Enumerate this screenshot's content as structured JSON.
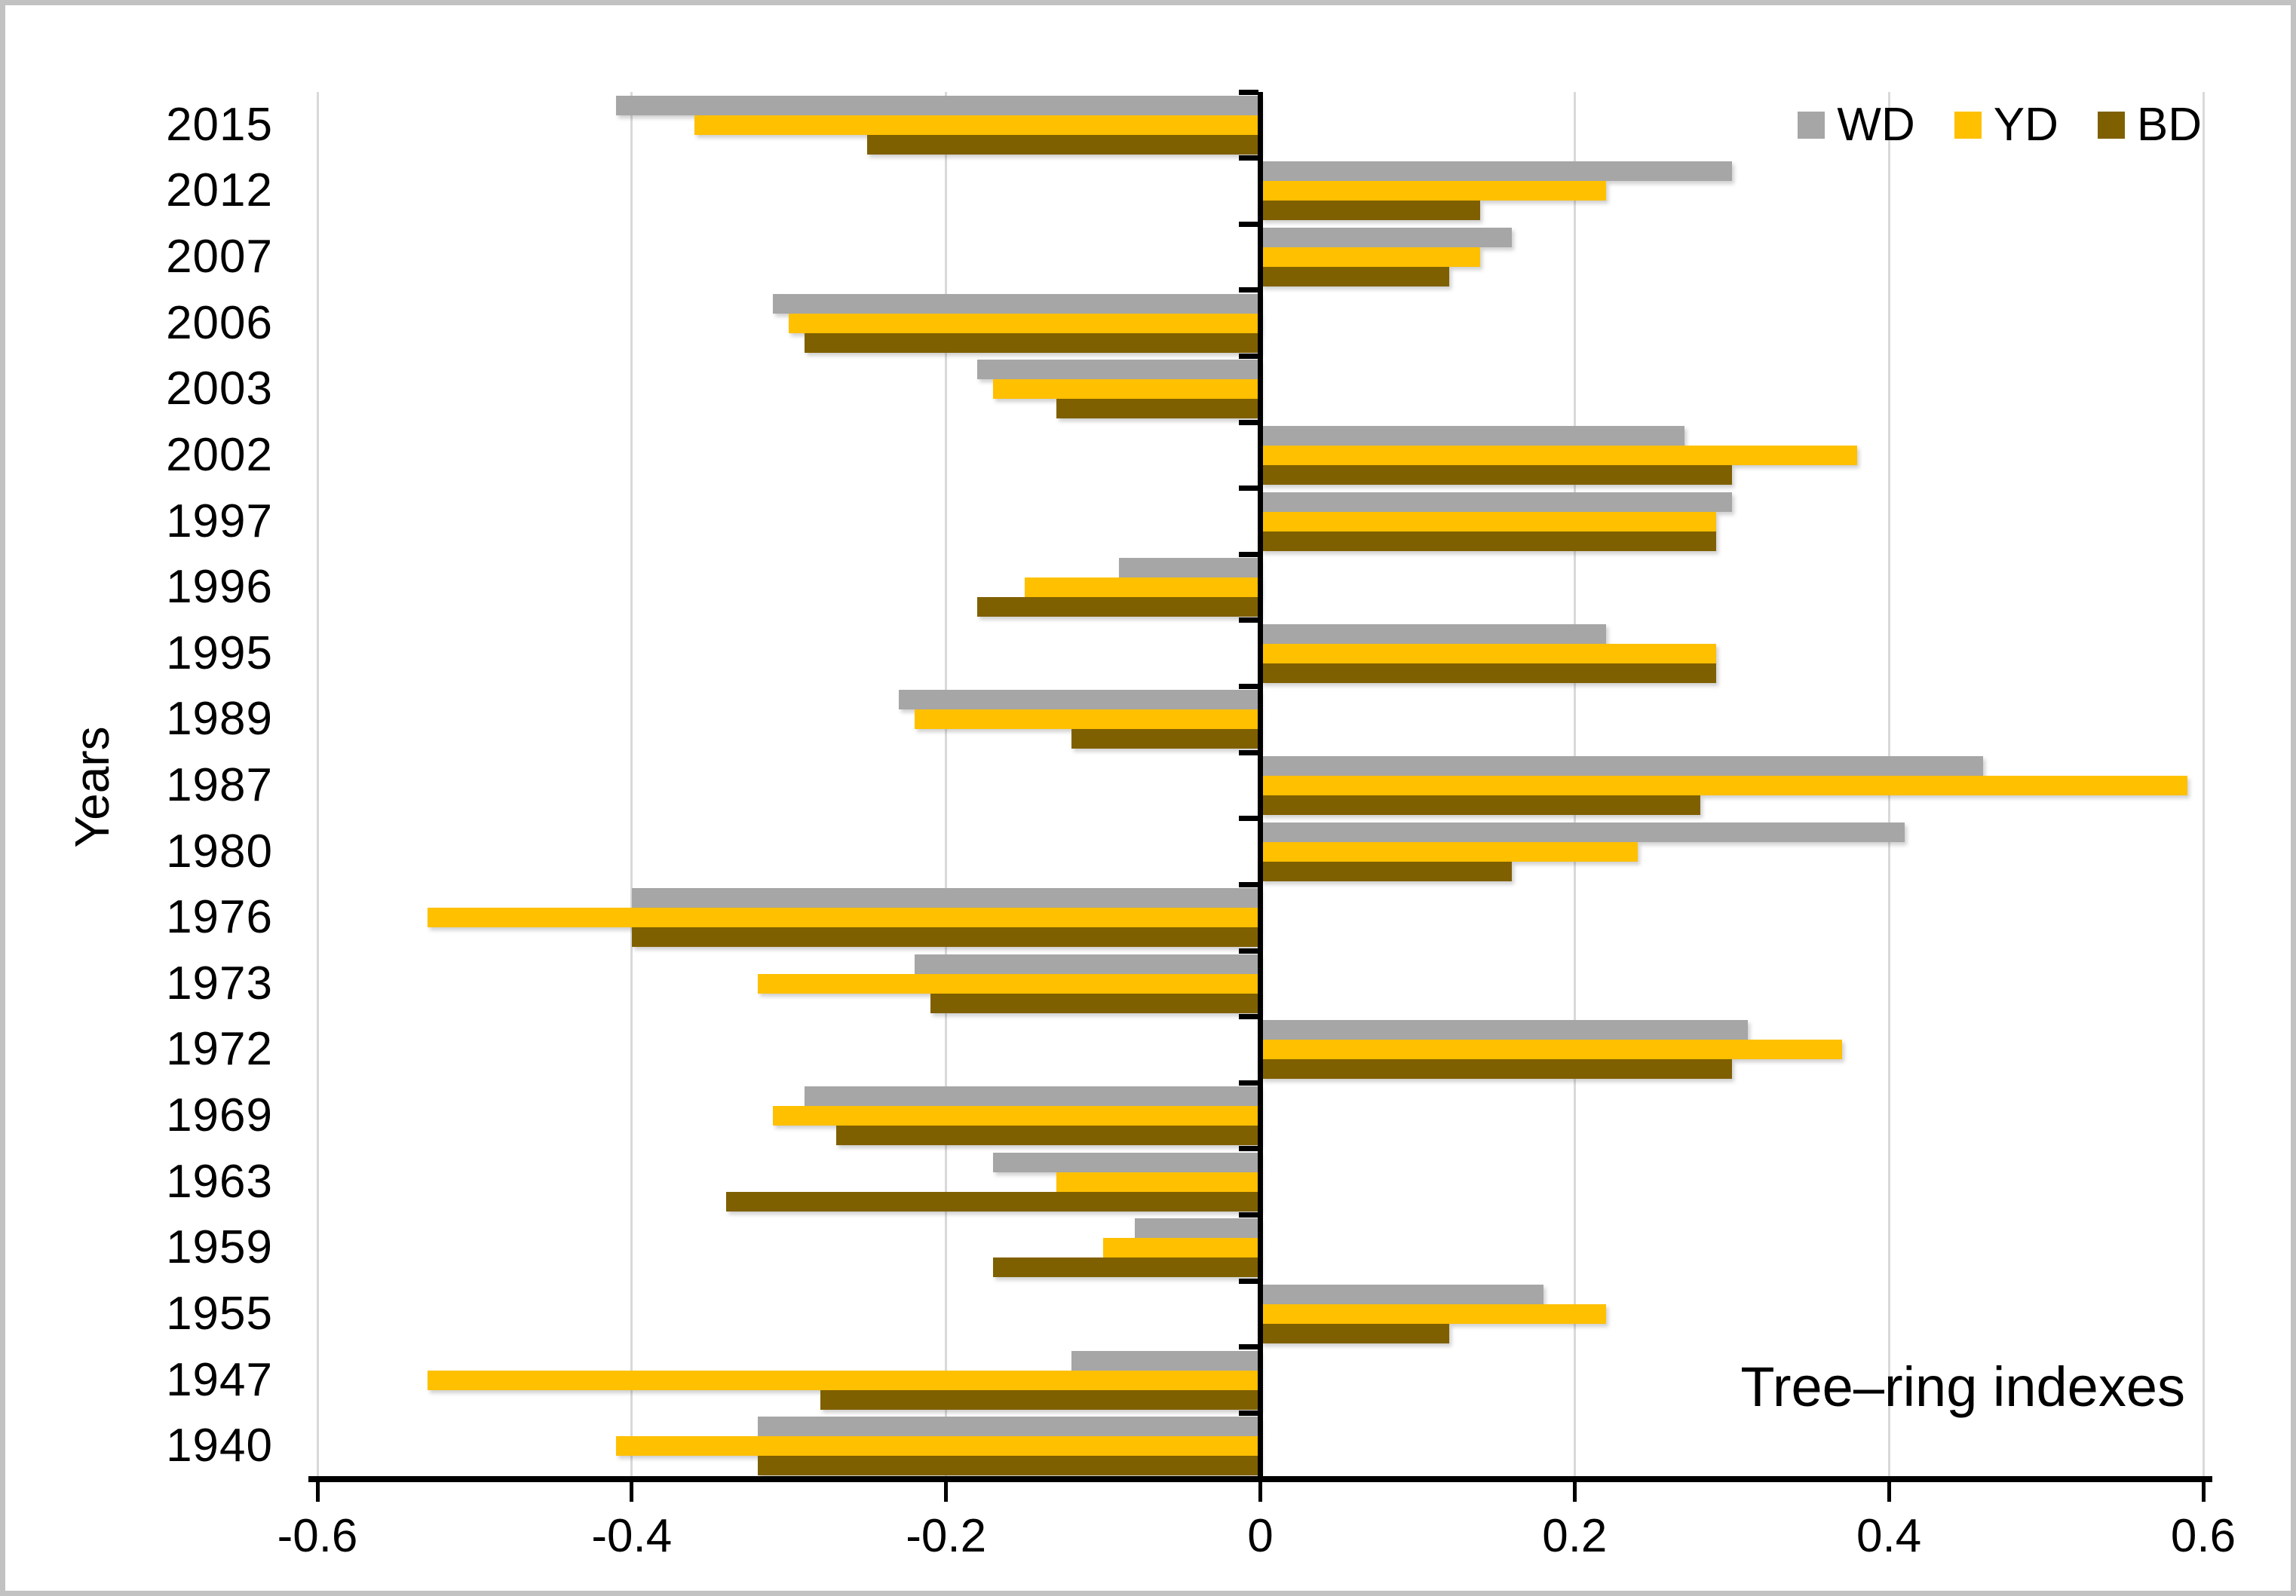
{
  "chart_data": {
    "type": "bar",
    "orientation": "horizontal",
    "title": "Tree–ring indexes",
    "xlabel": "",
    "ylabel": "Years",
    "categories": [
      "2015",
      "2012",
      "2007",
      "2006",
      "2003",
      "2002",
      "1997",
      "1996",
      "1995",
      "1989",
      "1987",
      "1980",
      "1976",
      "1973",
      "1972",
      "1969",
      "1963",
      "1959",
      "1955",
      "1947",
      "1940"
    ],
    "series": [
      {
        "name": "WD",
        "color": "#A6A6A6",
        "values": [
          -0.41,
          0.3,
          0.16,
          -0.31,
          -0.18,
          0.27,
          0.3,
          -0.09,
          0.22,
          -0.23,
          0.46,
          0.41,
          -0.4,
          -0.22,
          0.31,
          -0.29,
          -0.17,
          -0.08,
          0.18,
          -0.12,
          -0.32
        ]
      },
      {
        "name": "YD",
        "color": "#FFC000",
        "values": [
          -0.36,
          0.22,
          0.14,
          -0.3,
          -0.17,
          0.38,
          0.29,
          -0.15,
          0.29,
          -0.22,
          0.59,
          0.24,
          -0.53,
          -0.32,
          0.37,
          -0.31,
          -0.13,
          -0.1,
          0.22,
          -0.53,
          -0.41
        ]
      },
      {
        "name": "BD",
        "color": "#7F6000",
        "values": [
          -0.25,
          0.14,
          0.12,
          -0.29,
          -0.13,
          0.3,
          0.29,
          -0.18,
          0.29,
          -0.12,
          0.28,
          0.16,
          -0.4,
          -0.21,
          0.3,
          -0.27,
          -0.34,
          -0.17,
          0.12,
          -0.28,
          -0.32
        ]
      }
    ],
    "xlim": [
      -0.6,
      0.6
    ],
    "xticks": [
      -0.6,
      -0.4,
      -0.2,
      0,
      0.2,
      0.4,
      0.6
    ],
    "xtick_labels": [
      "-0.6",
      "-0.4",
      "-0.2",
      "0",
      "0.2",
      "0.4",
      "0.6"
    ],
    "grid": "vertical",
    "legend_position": "top-right",
    "axis_color": "#000000",
    "gridline_color": "#D9D9D9",
    "background_color": "#FFFFFF"
  }
}
